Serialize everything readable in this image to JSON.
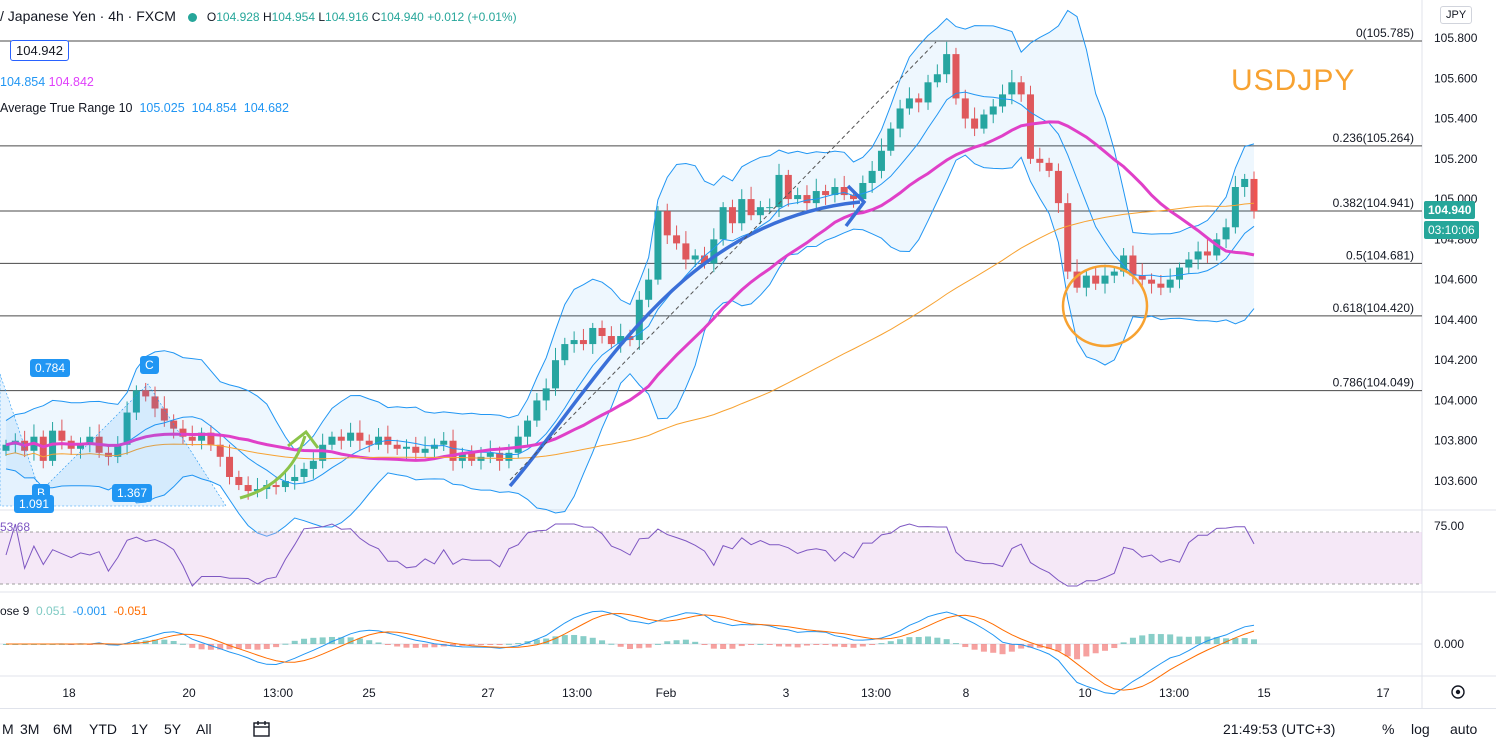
{
  "header": {
    "symbol": "/ Japanese Yen · 4h · FXCM",
    "open_label": "O",
    "open": "104.928",
    "high_label": "H",
    "high": "104.954",
    "low_label": "L",
    "low": "104.916",
    "close_label": "C",
    "close": "104.940",
    "change": "+0.012 (+0.01%)"
  },
  "currency": "JPY",
  "price_box": "104.942",
  "indicators": {
    "bb_values": [
      "104.854",
      "104.842"
    ],
    "atr_label": "Average True Range 10",
    "atr_values": [
      "105.025",
      "104.854",
      "104.682"
    ],
    "rsi_value": "53.68",
    "macd_label": "ose 9",
    "macd_values": [
      "0.051",
      "-0.001",
      "-0.051"
    ]
  },
  "watermark": "USDJPY",
  "badges": {
    "last_price": "104.940",
    "countdown": "03:10:06"
  },
  "pattern_labels": {
    "b": "B",
    "c": "C",
    "ratio_1": "0.784",
    "ratio_2": "1.091",
    "ratio_3": "1.367"
  },
  "fib_levels": [
    {
      "label": "0(105.785)",
      "value": 105.785
    },
    {
      "label": "0.236(105.264)",
      "value": 105.264
    },
    {
      "label": "0.382(104.941)",
      "value": 104.941
    },
    {
      "label": "0.5(104.681)",
      "value": 104.681
    },
    {
      "label": "0.618(104.420)",
      "value": 104.42
    },
    {
      "label": "0.786(104.049)",
      "value": 104.049
    }
  ],
  "rsi_axis": "75.00",
  "macd_axis": "0.000",
  "time_labels": [
    "18",
    "20",
    "13:00",
    "25",
    "27",
    "13:00",
    "Feb",
    "3",
    "13:00",
    "8",
    "10",
    "13:00",
    "15",
    "17"
  ],
  "bottom_bar": {
    "ranges": [
      "M",
      "3M",
      "6M",
      "YTD",
      "1Y",
      "5Y",
      "All"
    ],
    "clock": "21:49:53 (UTC+3)",
    "pct": "%",
    "log": "log",
    "auto": "auto"
  },
  "chart_data": {
    "type": "candlestick",
    "symbol": "USDJPY",
    "timeframe": "4h",
    "y_ticks": [
      103.6,
      103.8,
      104.0,
      104.2,
      104.4,
      104.6,
      104.8,
      105.0,
      105.2,
      105.4,
      105.6,
      105.8
    ],
    "ylim": [
      103.5,
      105.85
    ],
    "closes": [
      103.78,
      103.8,
      103.75,
      103.82,
      103.7,
      103.85,
      103.8,
      103.76,
      103.78,
      103.82,
      103.74,
      103.72,
      103.78,
      103.94,
      104.05,
      104.02,
      103.96,
      103.9,
      103.86,
      103.82,
      103.8,
      103.84,
      103.78,
      103.72,
      103.62,
      103.58,
      103.55,
      103.56,
      103.58,
      103.57,
      103.6,
      103.62,
      103.66,
      103.7,
      103.78,
      103.82,
      103.8,
      103.84,
      103.8,
      103.78,
      103.82,
      103.78,
      103.76,
      103.77,
      103.74,
      103.76,
      103.78,
      103.8,
      103.7,
      103.74,
      103.7,
      103.72,
      103.74,
      103.7,
      103.74,
      103.82,
      103.9,
      104.0,
      104.06,
      104.2,
      104.28,
      104.3,
      104.28,
      104.36,
      104.32,
      104.28,
      104.32,
      104.3,
      104.5,
      104.6,
      104.94,
      104.82,
      104.78,
      104.7,
      104.72,
      104.68,
      104.8,
      104.96,
      104.88,
      105.0,
      104.92,
      104.96,
      104.96,
      105.12,
      105.0,
      105.02,
      104.98,
      105.04,
      105.02,
      105.06,
      105.02,
      105.0,
      105.08,
      105.14,
      105.24,
      105.35,
      105.45,
      105.5,
      105.48,
      105.58,
      105.62,
      105.72,
      105.5,
      105.4,
      105.35,
      105.42,
      105.46,
      105.52,
      105.58,
      105.52,
      105.2,
      105.18,
      105.14,
      104.98,
      104.64,
      104.56,
      104.62,
      104.58,
      104.62,
      104.64,
      104.72,
      104.62,
      104.6,
      104.58,
      104.56,
      104.6,
      104.66,
      104.7,
      104.74,
      104.72,
      104.8,
      104.86,
      105.06,
      105.1,
      104.94
    ]
  }
}
